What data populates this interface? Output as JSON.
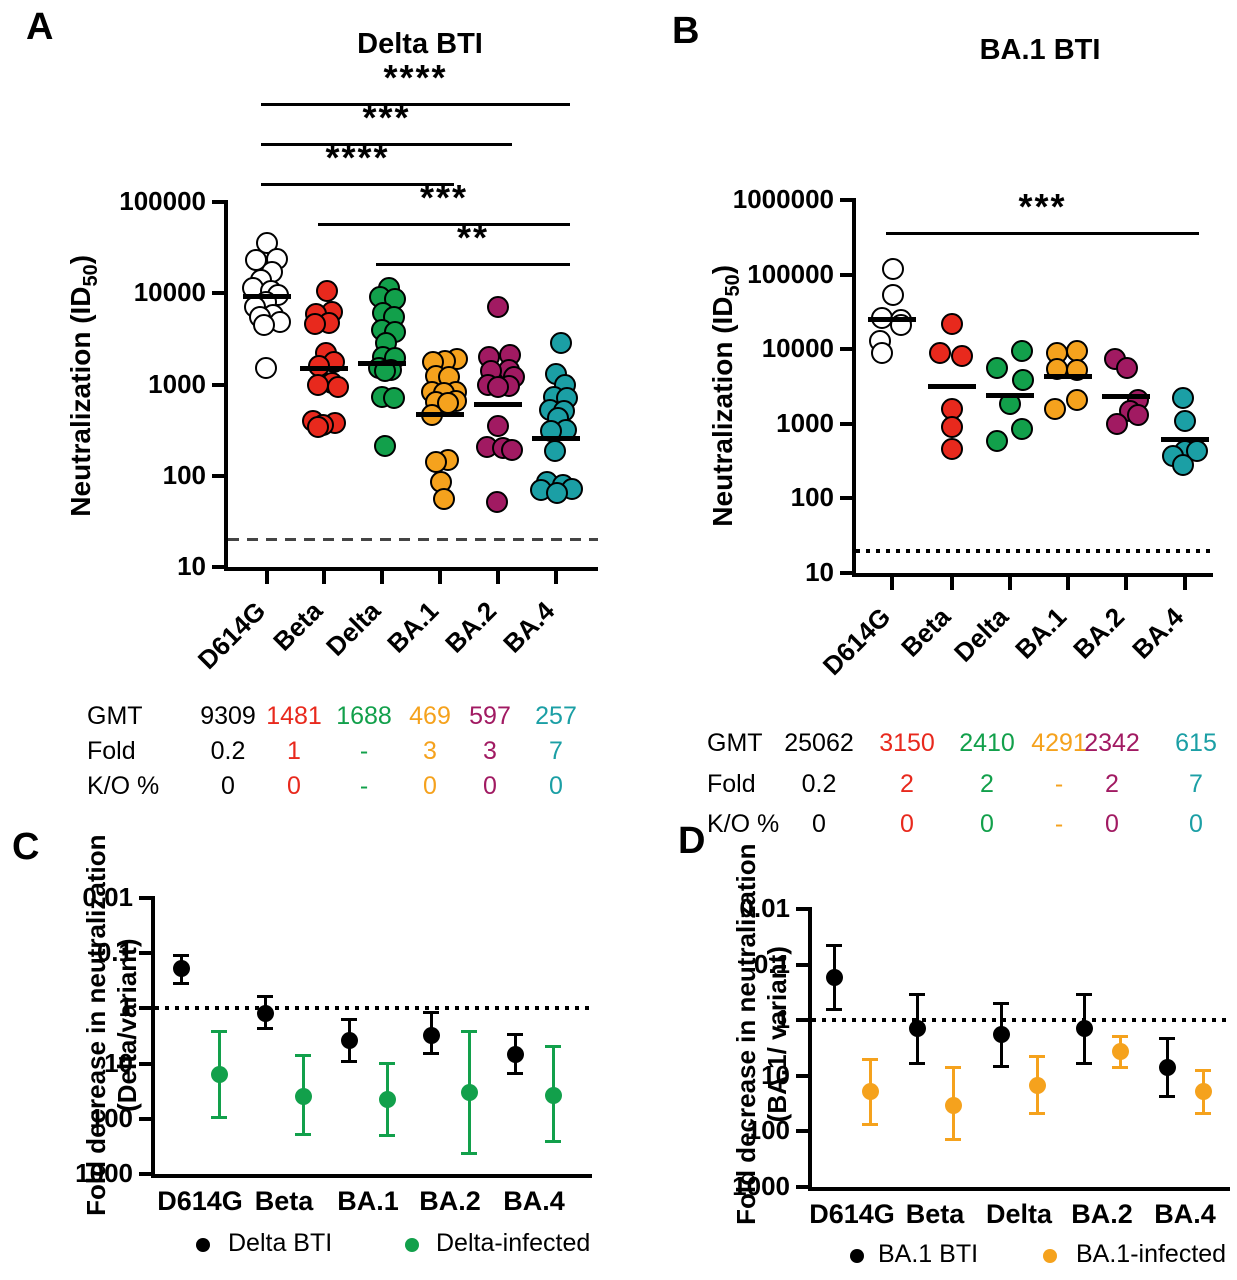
{
  "chart_data": {
    "A": {
      "type": "scatter",
      "panel_letter": "A",
      "title": "Delta BTI",
      "ylabel": {
        "pre": "Neutralization (ID",
        "sub": "50",
        "post": ")"
      },
      "ymin": 10,
      "ymax": 100000,
      "yticks": [
        {
          "value": 10,
          "label": "10"
        },
        {
          "value": 100,
          "label": "100"
        },
        {
          "value": 1000,
          "label": "1000"
        },
        {
          "value": 10000,
          "label": "10000"
        },
        {
          "value": 100000,
          "label": "100000"
        }
      ],
      "threshold": {
        "value": 20,
        "style": "dashed"
      },
      "significance": [
        {
          "from": 0,
          "to": 5,
          "label": "****"
        },
        {
          "from": 0,
          "to": 4,
          "label": "***"
        },
        {
          "from": 0,
          "to": 3,
          "label": "****"
        },
        {
          "from": 1,
          "to": 5,
          "label": "***"
        },
        {
          "from": 2,
          "to": 5,
          "label": "**"
        }
      ],
      "categories": [
        {
          "label": "D614G",
          "fill": "#ffffff",
          "color": "#000000",
          "gmt": 9309,
          "points": [
            {
              "v": 36000,
              "dx": 0
            },
            {
              "v": 24000,
              "dx": 10
            },
            {
              "v": 23000,
              "dx": -11
            },
            {
              "v": 17000,
              "dx": 5
            },
            {
              "v": 14000,
              "dx": -6
            },
            {
              "v": 11300,
              "dx": -14
            },
            {
              "v": 10700,
              "dx": 4
            },
            {
              "v": 9500,
              "dx": 11
            },
            {
              "v": 8000,
              "dx": -1
            },
            {
              "v": 7100,
              "dx": -12
            },
            {
              "v": 5800,
              "dx": 6
            },
            {
              "v": 5500,
              "dx": -7
            },
            {
              "v": 4800,
              "dx": 13
            },
            {
              "v": 4500,
              "dx": -3
            },
            {
              "v": 1500,
              "dx": -1
            }
          ]
        },
        {
          "label": "Beta",
          "fill": "#e8291d",
          "color": "#e8291d",
          "gmt": 1481,
          "points": [
            {
              "v": 10700,
              "dx": 3
            },
            {
              "v": 6200,
              "dx": 8
            },
            {
              "v": 6000,
              "dx": -8
            },
            {
              "v": 4700,
              "dx": 5
            },
            {
              "v": 4600,
              "dx": -9
            },
            {
              "v": 2200,
              "dx": 2
            },
            {
              "v": 1750,
              "dx": 10
            },
            {
              "v": 1600,
              "dx": -5
            },
            {
              "v": 1050,
              "dx": 8
            },
            {
              "v": 980,
              "dx": -6
            },
            {
              "v": 930,
              "dx": 14
            },
            {
              "v": 400,
              "dx": -11
            },
            {
              "v": 380,
              "dx": 11
            },
            {
              "v": 360,
              "dx": -1
            },
            {
              "v": 345,
              "dx": -6
            }
          ]
        },
        {
          "label": "Delta",
          "fill": "#12a04b",
          "color": "#12a04b",
          "gmt": 1688,
          "points": [
            {
              "v": 11500,
              "dx": 7
            },
            {
              "v": 9000,
              "dx": -2
            },
            {
              "v": 8600,
              "dx": 13
            },
            {
              "v": 6100,
              "dx": 1
            },
            {
              "v": 5500,
              "dx": 12
            },
            {
              "v": 4000,
              "dx": 0
            },
            {
              "v": 3800,
              "dx": 13
            },
            {
              "v": 2850,
              "dx": 4
            },
            {
              "v": 2000,
              "dx": 1
            },
            {
              "v": 1950,
              "dx": 13
            },
            {
              "v": 1500,
              "dx": -3
            },
            {
              "v": 1450,
              "dx": 9
            },
            {
              "v": 1400,
              "dx": 3
            },
            {
              "v": 730,
              "dx": 0
            },
            {
              "v": 710,
              "dx": 12
            },
            {
              "v": 210,
              "dx": 3
            }
          ]
        },
        {
          "label": "BA.1",
          "fill": "#f5a21d",
          "color": "#f5a21d",
          "gmt": 469,
          "points": [
            {
              "v": 1900,
              "dx": 17
            },
            {
              "v": 1800,
              "dx": 5
            },
            {
              "v": 1750,
              "dx": -7
            },
            {
              "v": 1250,
              "dx": -4
            },
            {
              "v": 1200,
              "dx": 9
            },
            {
              "v": 830,
              "dx": -8
            },
            {
              "v": 820,
              "dx": 16
            },
            {
              "v": 800,
              "dx": 4
            },
            {
              "v": 660,
              "dx": 16
            },
            {
              "v": 640,
              "dx": -4
            },
            {
              "v": 630,
              "dx": 8
            },
            {
              "v": 460,
              "dx": -8
            },
            {
              "v": 150,
              "dx": 8
            },
            {
              "v": 140,
              "dx": -4
            },
            {
              "v": 85,
              "dx": 1
            },
            {
              "v": 55,
              "dx": 4
            }
          ]
        },
        {
          "label": "BA.2",
          "fill": "#a11a62",
          "color": "#a11a62",
          "gmt": 597,
          "points": [
            {
              "v": 7100,
              "dx": 0
            },
            {
              "v": 2100,
              "dx": 12
            },
            {
              "v": 2000,
              "dx": -9
            },
            {
              "v": 1450,
              "dx": 11
            },
            {
              "v": 1400,
              "dx": -7
            },
            {
              "v": 1200,
              "dx": 16
            },
            {
              "v": 980,
              "dx": -10
            },
            {
              "v": 960,
              "dx": 11
            },
            {
              "v": 930,
              "dx": 0
            },
            {
              "v": 350,
              "dx": 0
            },
            {
              "v": 205,
              "dx": -11
            },
            {
              "v": 200,
              "dx": 5
            },
            {
              "v": 190,
              "dx": 14
            },
            {
              "v": 52,
              "dx": -1
            }
          ]
        },
        {
          "label": "BA.4",
          "fill": "#1b9fa5",
          "color": "#1b9fa5",
          "gmt": 257,
          "points": [
            {
              "v": 2850,
              "dx": 5
            },
            {
              "v": 1300,
              "dx": 0
            },
            {
              "v": 980,
              "dx": 9
            },
            {
              "v": 730,
              "dx": -2
            },
            {
              "v": 710,
              "dx": 11
            },
            {
              "v": 530,
              "dx": -6
            },
            {
              "v": 510,
              "dx": 8
            },
            {
              "v": 430,
              "dx": 2
            },
            {
              "v": 320,
              "dx": 10
            },
            {
              "v": 310,
              "dx": -5
            },
            {
              "v": 185,
              "dx": -1
            },
            {
              "v": 85,
              "dx": -9
            },
            {
              "v": 80,
              "dx": 7
            },
            {
              "v": 72,
              "dx": 16
            },
            {
              "v": 70,
              "dx": -15
            },
            {
              "v": 65,
              "dx": 1
            }
          ]
        }
      ],
      "table": {
        "row_labels": [
          "GMT",
          "Fold",
          "K/O %"
        ],
        "rows": [
          [
            "9309",
            "1481",
            "1688",
            "469",
            "597",
            "257"
          ],
          [
            "0.2",
            "1",
            "-",
            "3",
            "3",
            "7"
          ],
          [
            "0",
            "0",
            "-",
            "0",
            "0",
            "0"
          ]
        ]
      }
    },
    "B": {
      "type": "scatter",
      "panel_letter": "B",
      "title": "BA.1 BTI",
      "ylabel": {
        "pre": "Neutralization (ID",
        "sub": "50",
        "post": ")"
      },
      "ymin": 10,
      "ymax": 1000000,
      "yticks": [
        {
          "value": 10,
          "label": "10"
        },
        {
          "value": 100,
          "label": "100"
        },
        {
          "value": 1000,
          "label": "1000"
        },
        {
          "value": 10000,
          "label": "10000"
        },
        {
          "value": 100000,
          "label": "100000"
        },
        {
          "value": 1000000,
          "label": "1000000"
        }
      ],
      "threshold": {
        "value": 20,
        "style": "dotted"
      },
      "significance": [
        {
          "from": 0,
          "to": 5,
          "label": "***"
        }
      ],
      "categories": [
        {
          "label": "D614G",
          "fill": "#ffffff",
          "color": "#000000",
          "gmt": 25062,
          "points": [
            {
              "v": 120000,
              "dx": 1
            },
            {
              "v": 53000,
              "dx": 1
            },
            {
              "v": 26000,
              "dx": -10
            },
            {
              "v": 24500,
              "dx": 9
            },
            {
              "v": 21000,
              "dx": 9
            },
            {
              "v": 13000,
              "dx": -12
            },
            {
              "v": 9000,
              "dx": -10
            }
          ]
        },
        {
          "label": "Beta",
          "fill": "#e8291d",
          "color": "#e8291d",
          "gmt": 3150,
          "points": [
            {
              "v": 22000,
              "dx": 0
            },
            {
              "v": 9000,
              "dx": -12
            },
            {
              "v": 8100,
              "dx": 10
            },
            {
              "v": 1600,
              "dx": 0
            },
            {
              "v": 900,
              "dx": 0
            },
            {
              "v": 460,
              "dx": 0
            }
          ]
        },
        {
          "label": "Delta",
          "fill": "#12a04b",
          "color": "#12a04b",
          "gmt": 2410,
          "points": [
            {
              "v": 9500,
              "dx": 12
            },
            {
              "v": 5600,
              "dx": -13
            },
            {
              "v": 3900,
              "dx": 13
            },
            {
              "v": 1870,
              "dx": 0
            },
            {
              "v": 850,
              "dx": 12
            },
            {
              "v": 590,
              "dx": -13
            }
          ]
        },
        {
          "label": "BA.1",
          "fill": "#f5a21d",
          "color": "#f5a21d",
          "gmt": 4291,
          "points": [
            {
              "v": 9500,
              "dx": 9
            },
            {
              "v": 9000,
              "dx": -11
            },
            {
              "v": 5400,
              "dx": -11
            },
            {
              "v": 5300,
              "dx": 9
            },
            {
              "v": 2080,
              "dx": 9
            },
            {
              "v": 1600,
              "dx": -13
            }
          ]
        },
        {
          "label": "BA.2",
          "fill": "#a11a62",
          "color": "#a11a62",
          "gmt": 2342,
          "points": [
            {
              "v": 7300,
              "dx": -11
            },
            {
              "v": 5600,
              "dx": 1
            },
            {
              "v": 2080,
              "dx": 12
            },
            {
              "v": 1500,
              "dx": 4
            },
            {
              "v": 1300,
              "dx": 12
            },
            {
              "v": 1000,
              "dx": -9
            }
          ]
        },
        {
          "label": "BA.4",
          "fill": "#1b9fa5",
          "color": "#1b9fa5",
          "gmt": 615,
          "points": [
            {
              "v": 2200,
              "dx": -2
            },
            {
              "v": 1100,
              "dx": 0
            },
            {
              "v": 435,
              "dx": 0
            },
            {
              "v": 430,
              "dx": 12
            },
            {
              "v": 370,
              "dx": -12
            },
            {
              "v": 280,
              "dx": -2
            }
          ]
        }
      ],
      "table": {
        "row_labels": [
          "GMT",
          "Fold",
          "K/O %"
        ],
        "rows": [
          [
            "25062",
            "3150",
            "2410",
            "4291",
            "2342",
            "615"
          ],
          [
            "0.2",
            "2",
            "2",
            "-",
            "2",
            "7"
          ],
          [
            "0",
            "0",
            "0",
            "-",
            "0",
            "0"
          ]
        ]
      }
    },
    "C": {
      "type": "pointrange",
      "panel_letter": "C",
      "ylabel_lines": [
        "Fold decrease in neutralization",
        "(Delta/variant)"
      ],
      "yticks": [
        "0.01",
        "0.1",
        "1",
        "10",
        "100",
        "1000"
      ],
      "ylim_top": 0.01,
      "ylim_bottom": 1000,
      "threshold": 1,
      "categories": [
        "D614G",
        "Beta",
        "BA.1",
        "BA.2",
        "BA.4"
      ],
      "series": [
        {
          "name": "Delta BTI",
          "color": "#000000",
          "points": [
            {
              "v": 0.19,
              "lo": 0.11,
              "hi": 0.36
            },
            {
              "v": 1.23,
              "lo": 0.6,
              "hi": 2.3
            },
            {
              "v": 3.8,
              "lo": 1.6,
              "hi": 9
            },
            {
              "v": 3.1,
              "lo": 1.2,
              "hi": 6.5
            },
            {
              "v": 6.8,
              "lo": 3,
              "hi": 15
            }
          ]
        },
        {
          "name": "Delta-infected",
          "color": "#12a04b",
          "points": [
            {
              "v": 16,
              "lo": 2.6,
              "hi": 95
            },
            {
              "v": 39,
              "lo": 7,
              "hi": 190
            },
            {
              "v": 45,
              "lo": 9.8,
              "hi": 200
            },
            {
              "v": 33,
              "lo": 2.6,
              "hi": 420
            },
            {
              "v": 37,
              "lo": 4.8,
              "hi": 260
            }
          ]
        }
      ]
    },
    "D": {
      "type": "pointrange",
      "panel_letter": "D",
      "ylabel_lines": [
        "Fold decrease in neutralization",
        "(BA.1/ variant)"
      ],
      "yticks": [
        "0.01",
        "0.1",
        "1",
        "10",
        "100",
        "1000"
      ],
      "ylim_top": 0.01,
      "ylim_bottom": 1000,
      "threshold": 1,
      "categories": [
        "D614G",
        "Beta",
        "Delta",
        "BA.2",
        "BA.4"
      ],
      "series": [
        {
          "name": "BA.1 BTI",
          "color": "#000000",
          "points": [
            {
              "v": 0.17,
              "lo": 0.045,
              "hi": 0.65
            },
            {
              "v": 1.4,
              "lo": 0.35,
              "hi": 5.9
            },
            {
              "v": 1.8,
              "lo": 0.5,
              "hi": 6.8
            },
            {
              "v": 1.4,
              "lo": 0.35,
              "hi": 5.9
            },
            {
              "v": 7,
              "lo": 2.1,
              "hi": 24
            }
          ]
        },
        {
          "name": "BA.1-infected",
          "color": "#f5a21d",
          "points": [
            {
              "v": 19,
              "lo": 5,
              "hi": 75
            },
            {
              "v": 34,
              "lo": 7,
              "hi": 140
            },
            {
              "v": 15,
              "lo": 4.5,
              "hi": 47
            },
            {
              "v": 3.7,
              "lo": 2,
              "hi": 7.2
            },
            {
              "v": 19,
              "lo": 8,
              "hi": 47
            }
          ]
        }
      ]
    }
  }
}
